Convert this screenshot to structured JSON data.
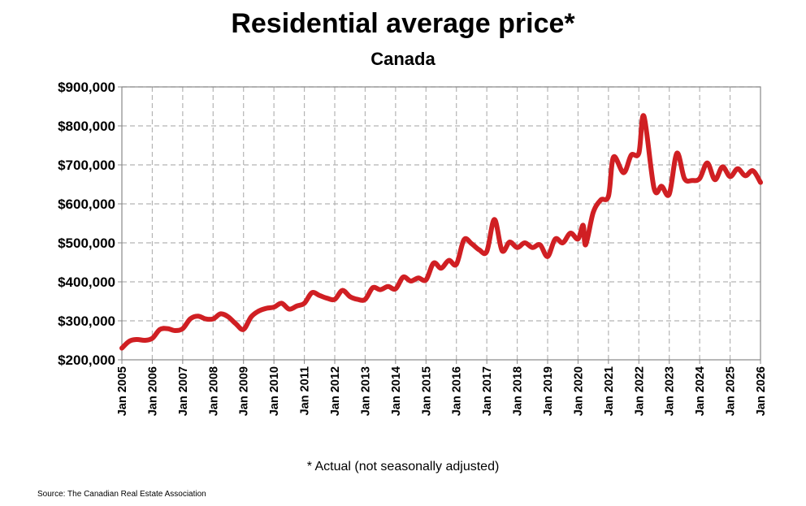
{
  "title": "Residential average price*",
  "subtitle": "Canada",
  "footnote": "* Actual (not seasonally adjusted)",
  "source": "Source: The Canadian Real Estate Association",
  "colors": {
    "line": "#d01f23",
    "grid": "#b4b4b4",
    "axis": "#888888"
  },
  "chart_data": {
    "type": "line",
    "title": "Residential average price*",
    "subtitle": "Canada",
    "xlabel": "",
    "ylabel": "",
    "ylim": [
      200000,
      900000
    ],
    "xlim": [
      "2005-01",
      "2026-01"
    ],
    "grid": true,
    "y_ticks": [
      "$200,000",
      "$300,000",
      "$400,000",
      "$500,000",
      "$600,000",
      "$700,000",
      "$800,000",
      "$900,000"
    ],
    "x_ticks": [
      "Jan 2005",
      "Jan 2006",
      "Jan 2007",
      "Jan 2008",
      "Jan 2009",
      "Jan 2010",
      "Jan 2011",
      "Jan 2012",
      "Jan 2013",
      "Jan 2014",
      "Jan 2015",
      "Jan 2016",
      "Jan 2017",
      "Jan 2018",
      "Jan 2019",
      "Jan 2020",
      "Jan 2021",
      "Jan 2022",
      "Jan 2023",
      "Jan 2024",
      "Jan 2025",
      "Jan 2026"
    ],
    "series": [
      {
        "color": "#d01f23",
        "points": [
          [
            "2005-01",
            230000
          ],
          [
            "2005-04",
            248000
          ],
          [
            "2005-07",
            252000
          ],
          [
            "2005-10",
            250000
          ],
          [
            "2006-01",
            255000
          ],
          [
            "2006-04",
            278000
          ],
          [
            "2006-07",
            280000
          ],
          [
            "2006-10",
            275000
          ],
          [
            "2007-01",
            280000
          ],
          [
            "2007-04",
            305000
          ],
          [
            "2007-07",
            312000
          ],
          [
            "2007-10",
            305000
          ],
          [
            "2008-01",
            305000
          ],
          [
            "2008-04",
            318000
          ],
          [
            "2008-07",
            310000
          ],
          [
            "2008-10",
            292000
          ],
          [
            "2009-01",
            278000
          ],
          [
            "2009-04",
            310000
          ],
          [
            "2009-07",
            325000
          ],
          [
            "2009-10",
            332000
          ],
          [
            "2010-01",
            335000
          ],
          [
            "2010-04",
            345000
          ],
          [
            "2010-07",
            330000
          ],
          [
            "2010-10",
            338000
          ],
          [
            "2011-01",
            345000
          ],
          [
            "2011-04",
            372000
          ],
          [
            "2011-07",
            365000
          ],
          [
            "2011-10",
            358000
          ],
          [
            "2012-01",
            355000
          ],
          [
            "2012-04",
            378000
          ],
          [
            "2012-07",
            362000
          ],
          [
            "2012-10",
            355000
          ],
          [
            "2013-01",
            355000
          ],
          [
            "2013-04",
            385000
          ],
          [
            "2013-07",
            380000
          ],
          [
            "2013-10",
            388000
          ],
          [
            "2014-01",
            382000
          ],
          [
            "2014-04",
            412000
          ],
          [
            "2014-07",
            402000
          ],
          [
            "2014-10",
            410000
          ],
          [
            "2015-01",
            405000
          ],
          [
            "2015-04",
            448000
          ],
          [
            "2015-07",
            435000
          ],
          [
            "2015-10",
            455000
          ],
          [
            "2016-01",
            445000
          ],
          [
            "2016-04",
            508000
          ],
          [
            "2016-07",
            498000
          ],
          [
            "2016-10",
            482000
          ],
          [
            "2017-01",
            478000
          ],
          [
            "2017-04",
            560000
          ],
          [
            "2017-07",
            480000
          ],
          [
            "2017-10",
            502000
          ],
          [
            "2018-01",
            488000
          ],
          [
            "2018-04",
            500000
          ],
          [
            "2018-07",
            488000
          ],
          [
            "2018-10",
            495000
          ],
          [
            "2019-01",
            465000
          ],
          [
            "2019-04",
            510000
          ],
          [
            "2019-07",
            500000
          ],
          [
            "2019-10",
            525000
          ],
          [
            "2020-01",
            510000
          ],
          [
            "2020-03",
            545000
          ],
          [
            "2020-04",
            495000
          ],
          [
            "2020-07",
            578000
          ],
          [
            "2020-10",
            610000
          ],
          [
            "2021-01",
            620000
          ],
          [
            "2021-03",
            720000
          ],
          [
            "2021-07",
            680000
          ],
          [
            "2021-10",
            725000
          ],
          [
            "2022-01",
            730000
          ],
          [
            "2022-03",
            825000
          ],
          [
            "2022-07",
            640000
          ],
          [
            "2022-10",
            645000
          ],
          [
            "2023-01",
            625000
          ],
          [
            "2023-04",
            730000
          ],
          [
            "2023-07",
            665000
          ],
          [
            "2023-10",
            660000
          ],
          [
            "2024-01",
            665000
          ],
          [
            "2024-04",
            705000
          ],
          [
            "2024-07",
            662000
          ],
          [
            "2024-10",
            695000
          ],
          [
            "2025-01",
            670000
          ],
          [
            "2025-04",
            690000
          ],
          [
            "2025-07",
            672000
          ],
          [
            "2025-10",
            685000
          ],
          [
            "2026-01",
            655000
          ]
        ]
      }
    ]
  }
}
